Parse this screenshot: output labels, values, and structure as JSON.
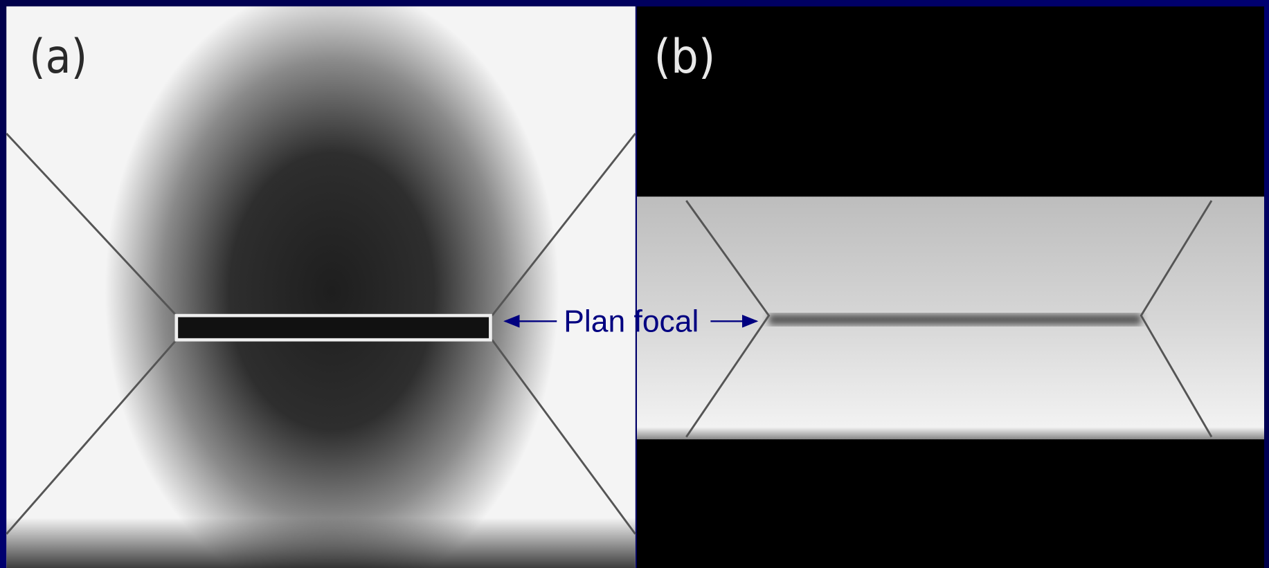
{
  "panels": [
    {
      "label": "(a)"
    },
    {
      "label": "(b)"
    }
  ],
  "annotation": "Plan focal"
}
